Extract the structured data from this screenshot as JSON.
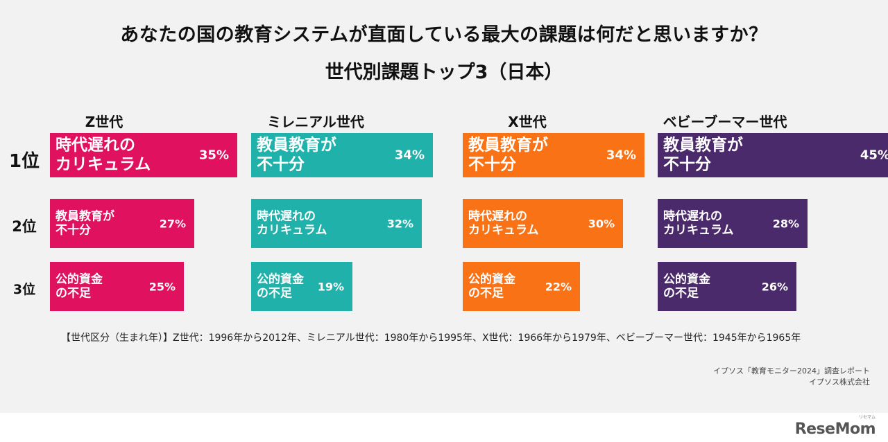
{
  "title": "あなたの国の教育システムが直面している最大の課題は何だと思いますか？",
  "subtitle": "世代別課題トップ3（日本）",
  "ranks": [
    "1位",
    "2位",
    "3位"
  ],
  "colors": {
    "Z世代": "#e0115f",
    "ミレニアル世代": "#20b2aa",
    "X世代": "#f97316",
    "ベビーブーマー世代": "#4b2a6b"
  },
  "chart_data": {
    "type": "bar",
    "orientation": "horizontal",
    "xlim": [
      0,
      45
    ],
    "groups": [
      {
        "name": "Z世代",
        "bars": [
          {
            "rank": "1位",
            "label": [
              "時代遅れの",
              "カリキュラム"
            ],
            "value": 35,
            "value_label": "35%"
          },
          {
            "rank": "2位",
            "label": [
              "教員教育が",
              "不十分"
            ],
            "value": 27,
            "value_label": "27%"
          },
          {
            "rank": "3位",
            "label": [
              "公的資金",
              "の不足"
            ],
            "value": 25,
            "value_label": "25%"
          }
        ]
      },
      {
        "name": "ミレニアル世代",
        "bars": [
          {
            "rank": "1位",
            "label": [
              "教員教育が",
              "不十分"
            ],
            "value": 34,
            "value_label": "34%"
          },
          {
            "rank": "2位",
            "label": [
              "時代遅れの",
              "カリキュラム"
            ],
            "value": 32,
            "value_label": "32%"
          },
          {
            "rank": "3位",
            "label": [
              "公的資金",
              "の不足"
            ],
            "value": 19,
            "value_label": "19%"
          }
        ]
      },
      {
        "name": "X世代",
        "bars": [
          {
            "rank": "1位",
            "label": [
              "教員教育が",
              "不十分"
            ],
            "value": 34,
            "value_label": "34%"
          },
          {
            "rank": "2位",
            "label": [
              "時代遅れの",
              "カリキュラム"
            ],
            "value": 30,
            "value_label": "30%"
          },
          {
            "rank": "3位",
            "label": [
              "公的資金",
              "の不足"
            ],
            "value": 22,
            "value_label": "22%"
          }
        ]
      },
      {
        "name": "ベビーブーマー世代",
        "bars": [
          {
            "rank": "1位",
            "label": [
              "教員教育が",
              "不十分"
            ],
            "value": 45,
            "value_label": "45%"
          },
          {
            "rank": "2位",
            "label": [
              "時代遅れの",
              "カリキュラム"
            ],
            "value": 28,
            "value_label": "28%"
          },
          {
            "rank": "3位",
            "label": [
              "公的資金",
              "の不足"
            ],
            "value": 26,
            "value_label": "26%"
          }
        ]
      }
    ]
  },
  "note": "【世代区分（生まれ年）】Z世代：1996年から2012年、ミレニアル世代：1980年から1995年、X世代：1966年から1979年、ベビーブーマー世代：1945年から1965年",
  "source_line1": "イプソス「教育モニター2024」調査レポート",
  "source_line2": "イプソス株式会社",
  "logo": "ReseMom",
  "logo_kana": "リセマム"
}
